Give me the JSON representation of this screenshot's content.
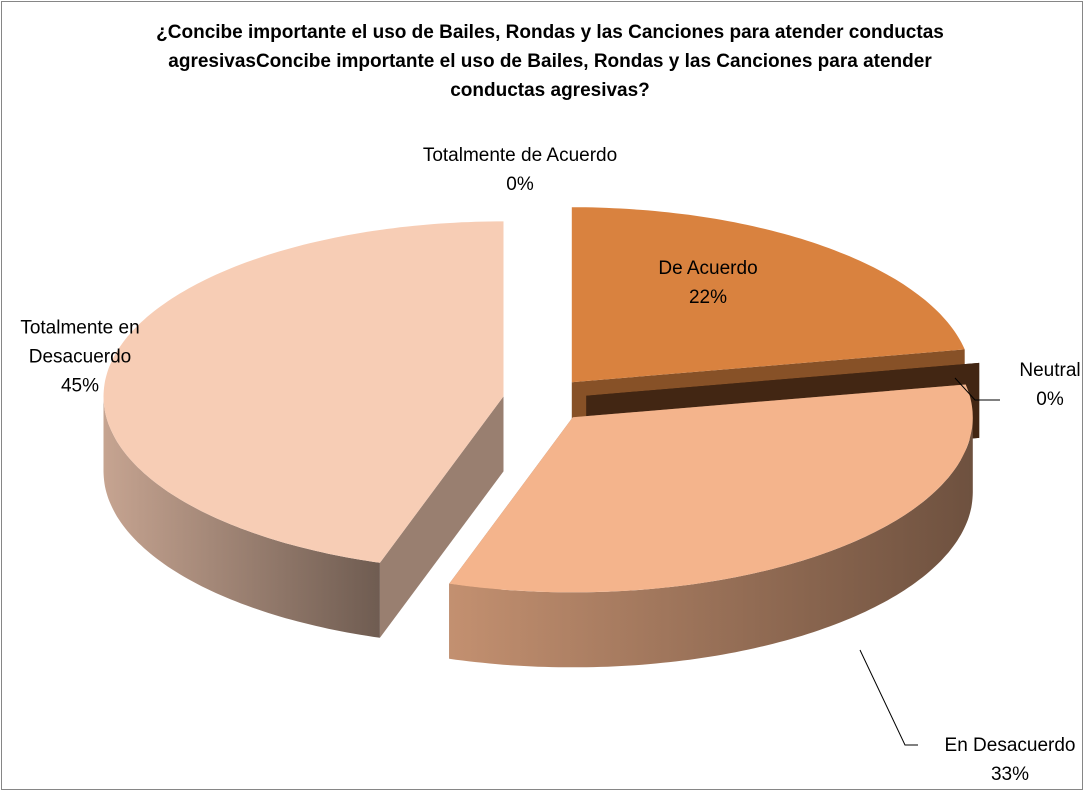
{
  "chart_data": {
    "type": "pie3d",
    "title": "¿Concibe importante el uso de Bailes,  Rondas y las Canciones para atender conductas agresivasConcibe importante el uso de Bailes,  Rondas y las Canciones para atender conductas agresivas?",
    "categories": [
      "Totalmente de Acuerdo",
      "De Acuerdo",
      "Neutral",
      "En Desacuerdo",
      "Totalmente en Desacuerdo"
    ],
    "values": [
      0,
      22,
      0,
      33,
      45
    ],
    "value_labels": [
      "0%",
      "22%",
      "0%",
      "33%",
      "45%"
    ],
    "colors": [
      "#8c5a3c",
      "#d9823f",
      "#6b3d1e",
      "#f4b48c",
      "#f7cdb5"
    ]
  }
}
